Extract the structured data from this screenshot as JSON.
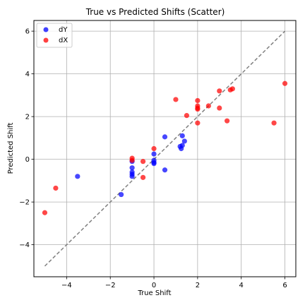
{
  "chart_data": {
    "type": "scatter",
    "title": "True vs Predicted Shifts (Scatter)",
    "xlabel": "True Shift",
    "ylabel": "Predicted Shift",
    "xlim": [
      -5.5,
      6.5
    ],
    "ylim": [
      -5.5,
      6.5
    ],
    "xticks": [
      -4,
      -2,
      0,
      2,
      4,
      6
    ],
    "yticks": [
      -4,
      -2,
      0,
      2,
      4,
      6
    ],
    "grid": true,
    "legend_position": "top-left",
    "reference_line": {
      "style": "dashed",
      "color": "#808080",
      "from": [
        -5,
        -5
      ],
      "to": [
        6,
        6
      ]
    },
    "series": [
      {
        "name": "dY",
        "color": "#0000ff",
        "points": [
          [
            -3.5,
            -0.8
          ],
          [
            -1.5,
            -1.65
          ],
          [
            -1.0,
            -0.1
          ],
          [
            -1.0,
            -0.4
          ],
          [
            -1.0,
            -0.6
          ],
          [
            -1.0,
            -0.7
          ],
          [
            -1.0,
            -0.8
          ],
          [
            0.0,
            0.25
          ],
          [
            0.0,
            -0.05
          ],
          [
            0.0,
            -0.15
          ],
          [
            0.0,
            -0.2
          ],
          [
            0.5,
            1.05
          ],
          [
            0.5,
            -0.5
          ],
          [
            1.2,
            0.6
          ],
          [
            1.25,
            0.5
          ],
          [
            1.3,
            1.1
          ],
          [
            1.4,
            0.85
          ],
          [
            1.3,
            0.65
          ]
        ]
      },
      {
        "name": "dX",
        "color": "#ff0000",
        "points": [
          [
            -5.0,
            -2.5
          ],
          [
            -4.5,
            -1.35
          ],
          [
            -1.0,
            0.05
          ],
          [
            -1.0,
            -0.05
          ],
          [
            -0.5,
            -0.85
          ],
          [
            -0.5,
            -0.1
          ],
          [
            0.0,
            0.5
          ],
          [
            1.0,
            2.8
          ],
          [
            1.5,
            2.05
          ],
          [
            2.0,
            2.75
          ],
          [
            2.0,
            2.5
          ],
          [
            2.0,
            2.4
          ],
          [
            2.0,
            2.35
          ],
          [
            2.0,
            1.7
          ],
          [
            2.5,
            2.5
          ],
          [
            3.0,
            3.2
          ],
          [
            3.0,
            2.4
          ],
          [
            3.35,
            1.8
          ],
          [
            3.5,
            3.25
          ],
          [
            3.6,
            3.3
          ],
          [
            5.5,
            1.7
          ],
          [
            6.0,
            3.55
          ]
        ]
      }
    ]
  }
}
